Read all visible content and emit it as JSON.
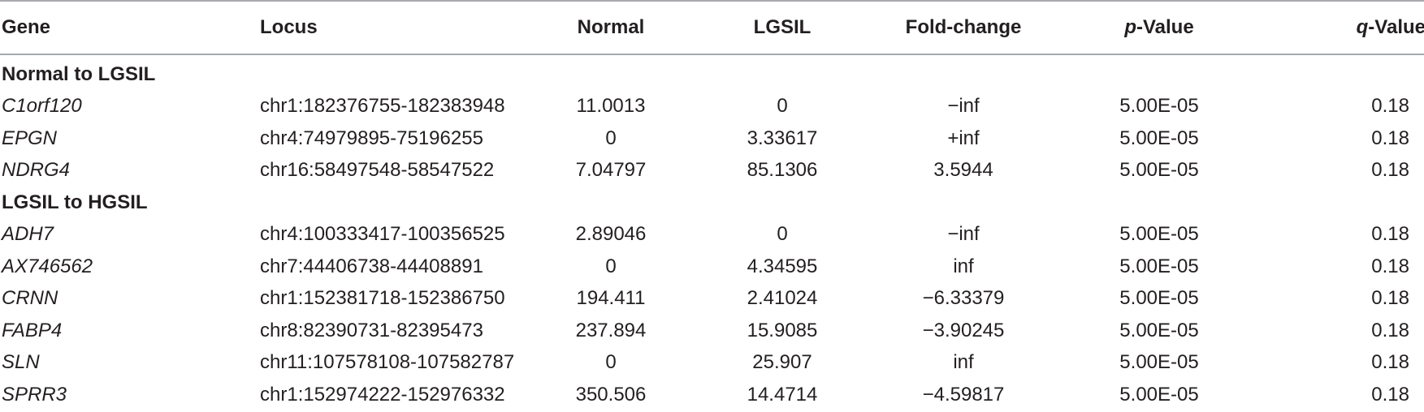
{
  "headers": {
    "gene": "Gene",
    "locus": "Locus",
    "normal": "Normal",
    "lgsil": "LGSIL",
    "fold_change": "Fold-change",
    "p_value_prefix": "p",
    "p_value_suffix": "-Value",
    "q_value_prefix": "q",
    "q_value_suffix": "-Value"
  },
  "sections": [
    {
      "title": "Normal to LGSIL",
      "rows": [
        {
          "gene": "C1orf120",
          "locus": "chr1:182376755-182383948",
          "normal": "11.0013",
          "lgsil": "0",
          "fold_change": "−inf",
          "p_value": "5.00E-05",
          "q_value": "0.18"
        },
        {
          "gene": "EPGN",
          "locus": "chr4:74979895-75196255",
          "normal": "0",
          "lgsil": "3.33617",
          "fold_change": "+inf",
          "p_value": "5.00E-05",
          "q_value": "0.18"
        },
        {
          "gene": "NDRG4",
          "locus": "chr16:58497548-58547522",
          "normal": "7.04797",
          "lgsil": "85.1306",
          "fold_change": "3.5944",
          "p_value": "5.00E-05",
          "q_value": "0.18"
        }
      ]
    },
    {
      "title": "LGSIL to HGSIL",
      "rows": [
        {
          "gene": "ADH7",
          "locus": "chr4:100333417-100356525",
          "normal": "2.89046",
          "lgsil": "0",
          "fold_change": "−inf",
          "p_value": "5.00E-05",
          "q_value": "0.18"
        },
        {
          "gene": "AX746562",
          "locus": "chr7:44406738-44408891",
          "normal": "0",
          "lgsil": "4.34595",
          "fold_change": "inf",
          "p_value": "5.00E-05",
          "q_value": "0.18"
        },
        {
          "gene": "CRNN",
          "locus": "chr1:152381718-152386750",
          "normal": "194.411",
          "lgsil": "2.41024",
          "fold_change": "−6.33379",
          "p_value": "5.00E-05",
          "q_value": "0.18"
        },
        {
          "gene": "FABP4",
          "locus": "chr8:82390731-82395473",
          "normal": "237.894",
          "lgsil": "15.9085",
          "fold_change": "−3.90245",
          "p_value": "5.00E-05",
          "q_value": "0.18"
        },
        {
          "gene": "SLN",
          "locus": "chr11:107578108-107582787",
          "normal": "0",
          "lgsil": "25.907",
          "fold_change": "inf",
          "p_value": "5.00E-05",
          "q_value": "0.18"
        },
        {
          "gene": "SPRR3",
          "locus": "chr1:152974222-152976332",
          "normal": "350.506",
          "lgsil": "14.4714",
          "fold_change": "−4.59817",
          "p_value": "5.00E-05",
          "q_value": "0.18"
        }
      ]
    }
  ]
}
